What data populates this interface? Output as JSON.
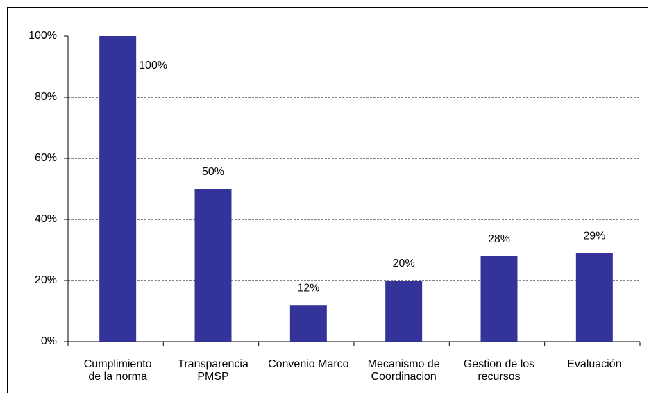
{
  "chart_data": {
    "type": "bar",
    "categories": [
      [
        "Cumplimiento",
        "de la norma"
      ],
      [
        "Transparencia",
        "PMSP"
      ],
      [
        "Convenio Marco"
      ],
      [
        "Mecanismo de",
        "Coordinacion"
      ],
      [
        "Gestion de los",
        "recursos"
      ],
      [
        "Evaluación"
      ]
    ],
    "values": [
      100,
      50,
      12,
      20,
      28,
      29
    ],
    "value_labels": [
      "100%",
      "50%",
      "12%",
      "20%",
      "28%",
      "29%"
    ],
    "color": "#333399",
    "ylim": [
      0,
      100
    ],
    "yticks": [
      {
        "value": 0,
        "label": "0%"
      },
      {
        "value": 20,
        "label": "20%"
      },
      {
        "value": 40,
        "label": "40%"
      },
      {
        "value": 60,
        "label": "60%"
      },
      {
        "value": 80,
        "label": "80%"
      },
      {
        "value": 100,
        "label": "100%"
      }
    ],
    "grid": true
  }
}
